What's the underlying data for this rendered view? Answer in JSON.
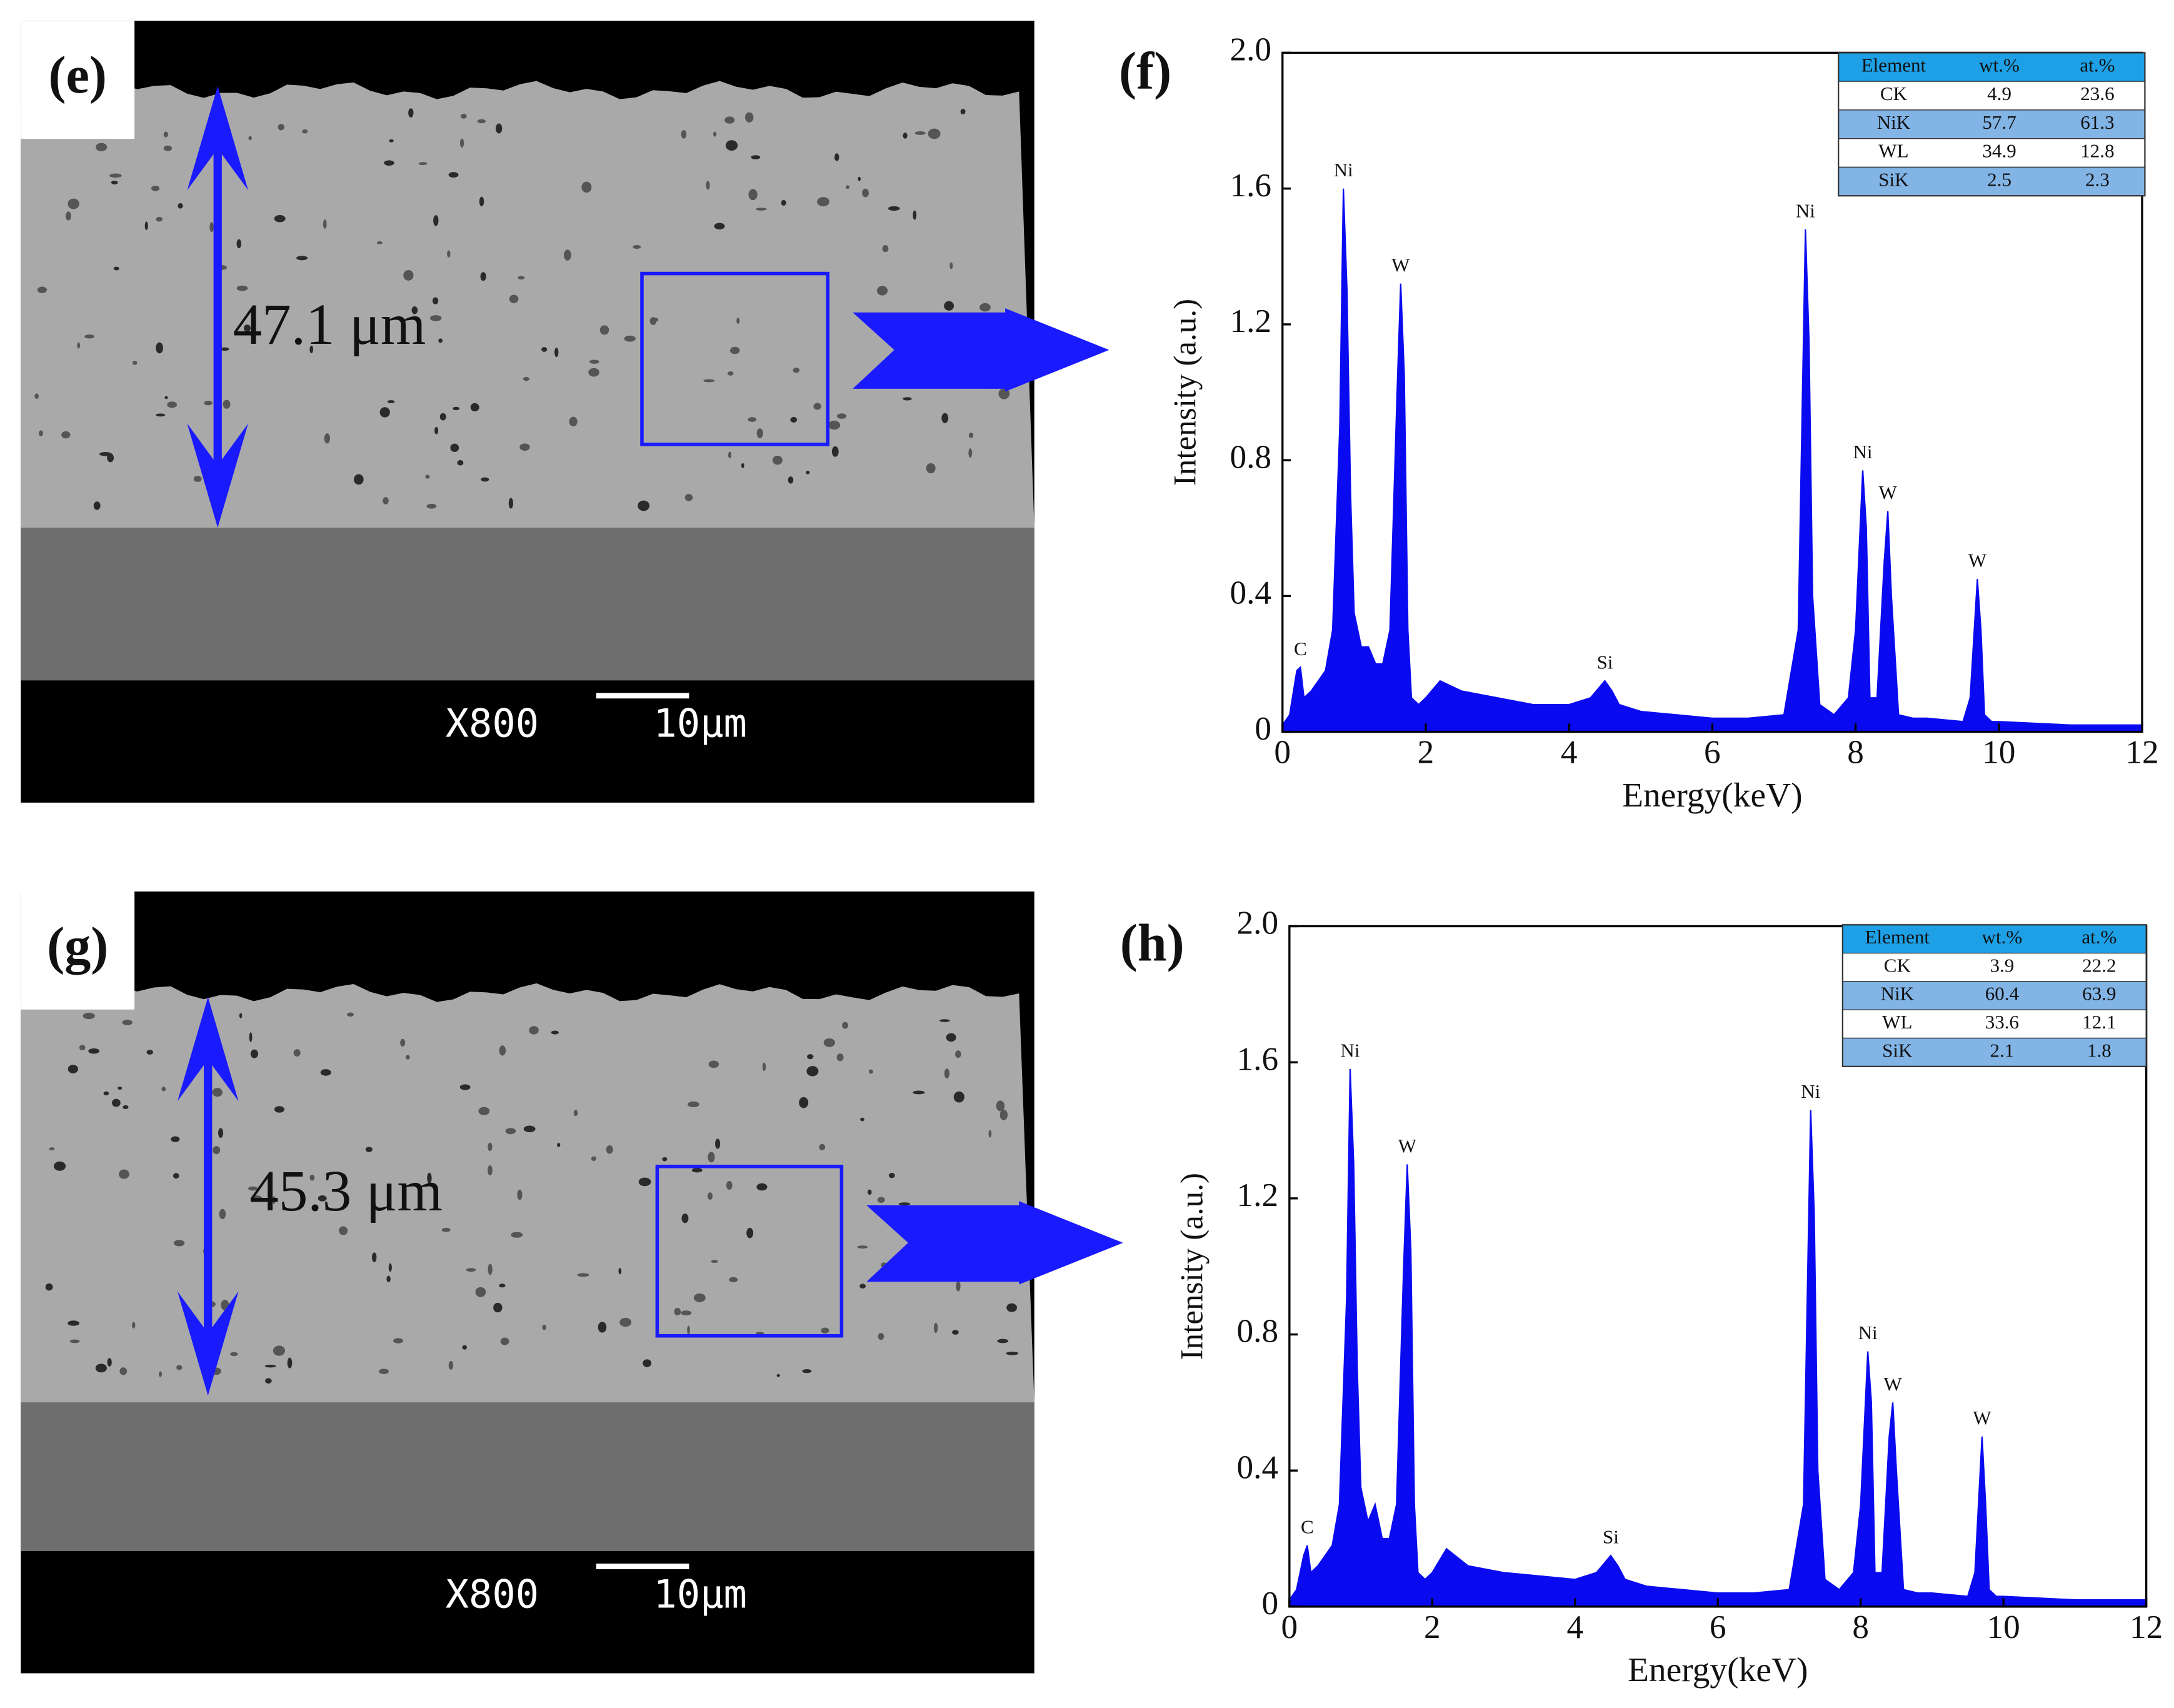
{
  "sem_panels": [
    {
      "label": "(e)",
      "thickness": "47.1 μm",
      "magnification": "X800",
      "scale_bar": "10μm"
    },
    {
      "label": "(g)",
      "thickness": "45.3 μm",
      "magnification": "X800",
      "scale_bar": "10μm"
    }
  ],
  "chart_data": [
    {
      "type": "area",
      "panel_label": "(f)",
      "x_label": "Energy(keV)",
      "y_label": "Intensity (a.u.)",
      "color": "#0a0af0",
      "xlim": [
        0,
        12
      ],
      "ylim": [
        0,
        2
      ],
      "xticks": [
        0,
        2,
        4,
        6,
        8,
        10,
        12
      ],
      "yticks": [
        0,
        0.4,
        0.8,
        1.2,
        1.6,
        {
          "value": 2,
          "label": "2.0"
        }
      ],
      "x": [
        0,
        0.1,
        0.2,
        0.25,
        0.3,
        0.4,
        0.5,
        0.6,
        0.7,
        0.8,
        0.85,
        0.9,
        0.95,
        1.0,
        1.1,
        1.2,
        1.3,
        1.4,
        1.5,
        1.6,
        1.65,
        1.7,
        1.75,
        1.8,
        1.9,
        2.0,
        2.2,
        2.5,
        3.0,
        3.5,
        4.0,
        4.3,
        4.5,
        4.6,
        4.7,
        5.0,
        5.5,
        6.0,
        6.5,
        7.0,
        7.2,
        7.3,
        7.35,
        7.4,
        7.5,
        7.7,
        7.9,
        8.0,
        8.1,
        8.15,
        8.2,
        8.3,
        8.4,
        8.45,
        8.5,
        8.6,
        8.8,
        9.0,
        9.5,
        9.6,
        9.7,
        9.75,
        9.8,
        9.9,
        10.0,
        11.0,
        12.0
      ],
      "values": [
        0.02,
        0.05,
        0.18,
        0.19,
        0.1,
        0.12,
        0.15,
        0.18,
        0.3,
        0.9,
        1.6,
        1.3,
        0.7,
        0.35,
        0.25,
        0.25,
        0.2,
        0.2,
        0.3,
        1.0,
        1.32,
        1.05,
        0.3,
        0.1,
        0.08,
        0.1,
        0.15,
        0.12,
        0.1,
        0.08,
        0.08,
        0.1,
        0.15,
        0.12,
        0.08,
        0.06,
        0.05,
        0.04,
        0.04,
        0.05,
        0.3,
        1.48,
        1.15,
        0.4,
        0.08,
        0.05,
        0.1,
        0.3,
        0.77,
        0.6,
        0.1,
        0.1,
        0.5,
        0.65,
        0.4,
        0.05,
        0.04,
        0.04,
        0.03,
        0.1,
        0.45,
        0.3,
        0.05,
        0.03,
        0.03,
        0.02,
        0.02
      ],
      "annotations": [
        {
          "text": "C",
          "x": 0.25,
          "y": 0.19
        },
        {
          "text": "Ni",
          "x": 0.85,
          "y": 1.6
        },
        {
          "text": "W",
          "x": 1.65,
          "y": 1.32
        },
        {
          "text": "Si",
          "x": 4.5,
          "y": 0.15
        },
        {
          "text": "Ni",
          "x": 7.3,
          "y": 1.48
        },
        {
          "text": "Ni",
          "x": 8.1,
          "y": 0.77
        },
        {
          "text": "W",
          "x": 8.45,
          "y": 0.65
        },
        {
          "text": "W",
          "x": 9.7,
          "y": 0.45
        }
      ],
      "table": {
        "columns": [
          "Element",
          "wt.%",
          "at.%"
        ],
        "rows": [
          [
            "CK",
            4.9,
            23.6
          ],
          [
            "NiK",
            57.7,
            61.3
          ],
          [
            "WL",
            34.9,
            12.8
          ],
          [
            "SiK",
            2.5,
            2.3
          ]
        ]
      }
    },
    {
      "type": "area",
      "panel_label": "(h)",
      "x_label": "Energy(keV)",
      "y_label": "Intensity (a.u.)",
      "color": "#0a0af0",
      "xlim": [
        0,
        12
      ],
      "ylim": [
        0,
        2
      ],
      "xticks": [
        0,
        2,
        4,
        6,
        8,
        10,
        12
      ],
      "yticks": [
        0,
        0.4,
        0.8,
        1.2,
        1.6,
        {
          "value": 2,
          "label": "2.0"
        }
      ],
      "x": [
        0,
        0.1,
        0.2,
        0.25,
        0.3,
        0.4,
        0.5,
        0.6,
        0.7,
        0.8,
        0.85,
        0.9,
        0.95,
        1.0,
        1.1,
        1.2,
        1.3,
        1.4,
        1.5,
        1.6,
        1.65,
        1.7,
        1.75,
        1.8,
        1.9,
        2.0,
        2.2,
        2.5,
        3.0,
        3.5,
        4.0,
        4.3,
        4.5,
        4.6,
        4.7,
        5.0,
        5.5,
        6.0,
        6.5,
        7.0,
        7.2,
        7.3,
        7.35,
        7.4,
        7.5,
        7.7,
        7.9,
        8.0,
        8.1,
        8.15,
        8.2,
        8.3,
        8.4,
        8.45,
        8.5,
        8.6,
        8.8,
        9.0,
        9.5,
        9.6,
        9.7,
        9.75,
        9.8,
        9.9,
        10.0,
        11.0,
        12.0
      ],
      "values": [
        0.02,
        0.05,
        0.15,
        0.18,
        0.1,
        0.12,
        0.15,
        0.18,
        0.3,
        0.9,
        1.58,
        1.3,
        0.7,
        0.35,
        0.25,
        0.3,
        0.2,
        0.2,
        0.3,
        1.0,
        1.3,
        1.05,
        0.3,
        0.1,
        0.08,
        0.1,
        0.17,
        0.12,
        0.1,
        0.09,
        0.08,
        0.1,
        0.15,
        0.12,
        0.08,
        0.06,
        0.05,
        0.04,
        0.04,
        0.05,
        0.3,
        1.46,
        1.15,
        0.4,
        0.08,
        0.05,
        0.1,
        0.3,
        0.75,
        0.6,
        0.1,
        0.1,
        0.5,
        0.6,
        0.4,
        0.05,
        0.04,
        0.04,
        0.03,
        0.1,
        0.5,
        0.3,
        0.05,
        0.03,
        0.03,
        0.02,
        0.02
      ],
      "annotations": [
        {
          "text": "C",
          "x": 0.25,
          "y": 0.18
        },
        {
          "text": "Ni",
          "x": 0.85,
          "y": 1.58
        },
        {
          "text": "W",
          "x": 1.65,
          "y": 1.3
        },
        {
          "text": "Si",
          "x": 4.5,
          "y": 0.15
        },
        {
          "text": "Ni",
          "x": 7.3,
          "y": 1.46
        },
        {
          "text": "Ni",
          "x": 8.1,
          "y": 0.75
        },
        {
          "text": "W",
          "x": 8.45,
          "y": 0.6
        },
        {
          "text": "W",
          "x": 9.7,
          "y": 0.5
        }
      ],
      "table": {
        "columns": [
          "Element",
          "wt.%",
          "at.%"
        ],
        "rows": [
          [
            "CK",
            3.9,
            22.2
          ],
          [
            "NiK",
            60.4,
            63.9
          ],
          [
            "WL",
            33.6,
            12.1
          ],
          [
            "SiK",
            2.1,
            1.8
          ]
        ]
      }
    }
  ]
}
